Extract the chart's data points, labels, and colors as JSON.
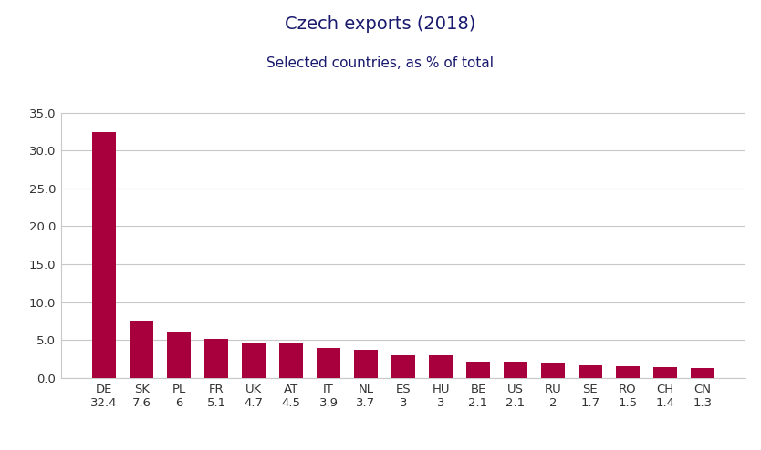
{
  "title": "Czech exports (2018)",
  "subtitle": "Selected countries, as % of total",
  "categories": [
    "DE",
    "SK",
    "PL",
    "FR",
    "UK",
    "AT",
    "IT",
    "NL",
    "ES",
    "HU",
    "BE",
    "US",
    "RU",
    "SE",
    "RO",
    "CH",
    "CN"
  ],
  "sublabels": [
    "32.4",
    "7.6",
    "6",
    "5.1",
    "4.7",
    "4.5",
    "3.9",
    "3.7",
    "3",
    "3",
    "2.1",
    "2.1",
    "2",
    "1.7",
    "1.5",
    "1.4",
    "1.3"
  ],
  "values": [
    32.4,
    7.6,
    6.0,
    5.1,
    4.7,
    4.5,
    3.9,
    3.7,
    3.0,
    3.0,
    2.1,
    2.1,
    2.0,
    1.7,
    1.5,
    1.4,
    1.3
  ],
  "bar_color": "#A8003C",
  "background_color": "#ffffff",
  "plot_bg_color": "#ffffff",
  "grid_color": "#c8c8c8",
  "title_color": "#1a1a6e",
  "subtitle_color": "#1a1a6e",
  "tick_label_color": "#333333",
  "ylim": [
    0,
    35.0
  ],
  "yticks": [
    0.0,
    5.0,
    10.0,
    15.0,
    20.0,
    25.0,
    30.0,
    35.0
  ],
  "title_fontsize": 14,
  "subtitle_fontsize": 11,
  "tick_fontsize": 9.5,
  "bar_width": 0.65
}
